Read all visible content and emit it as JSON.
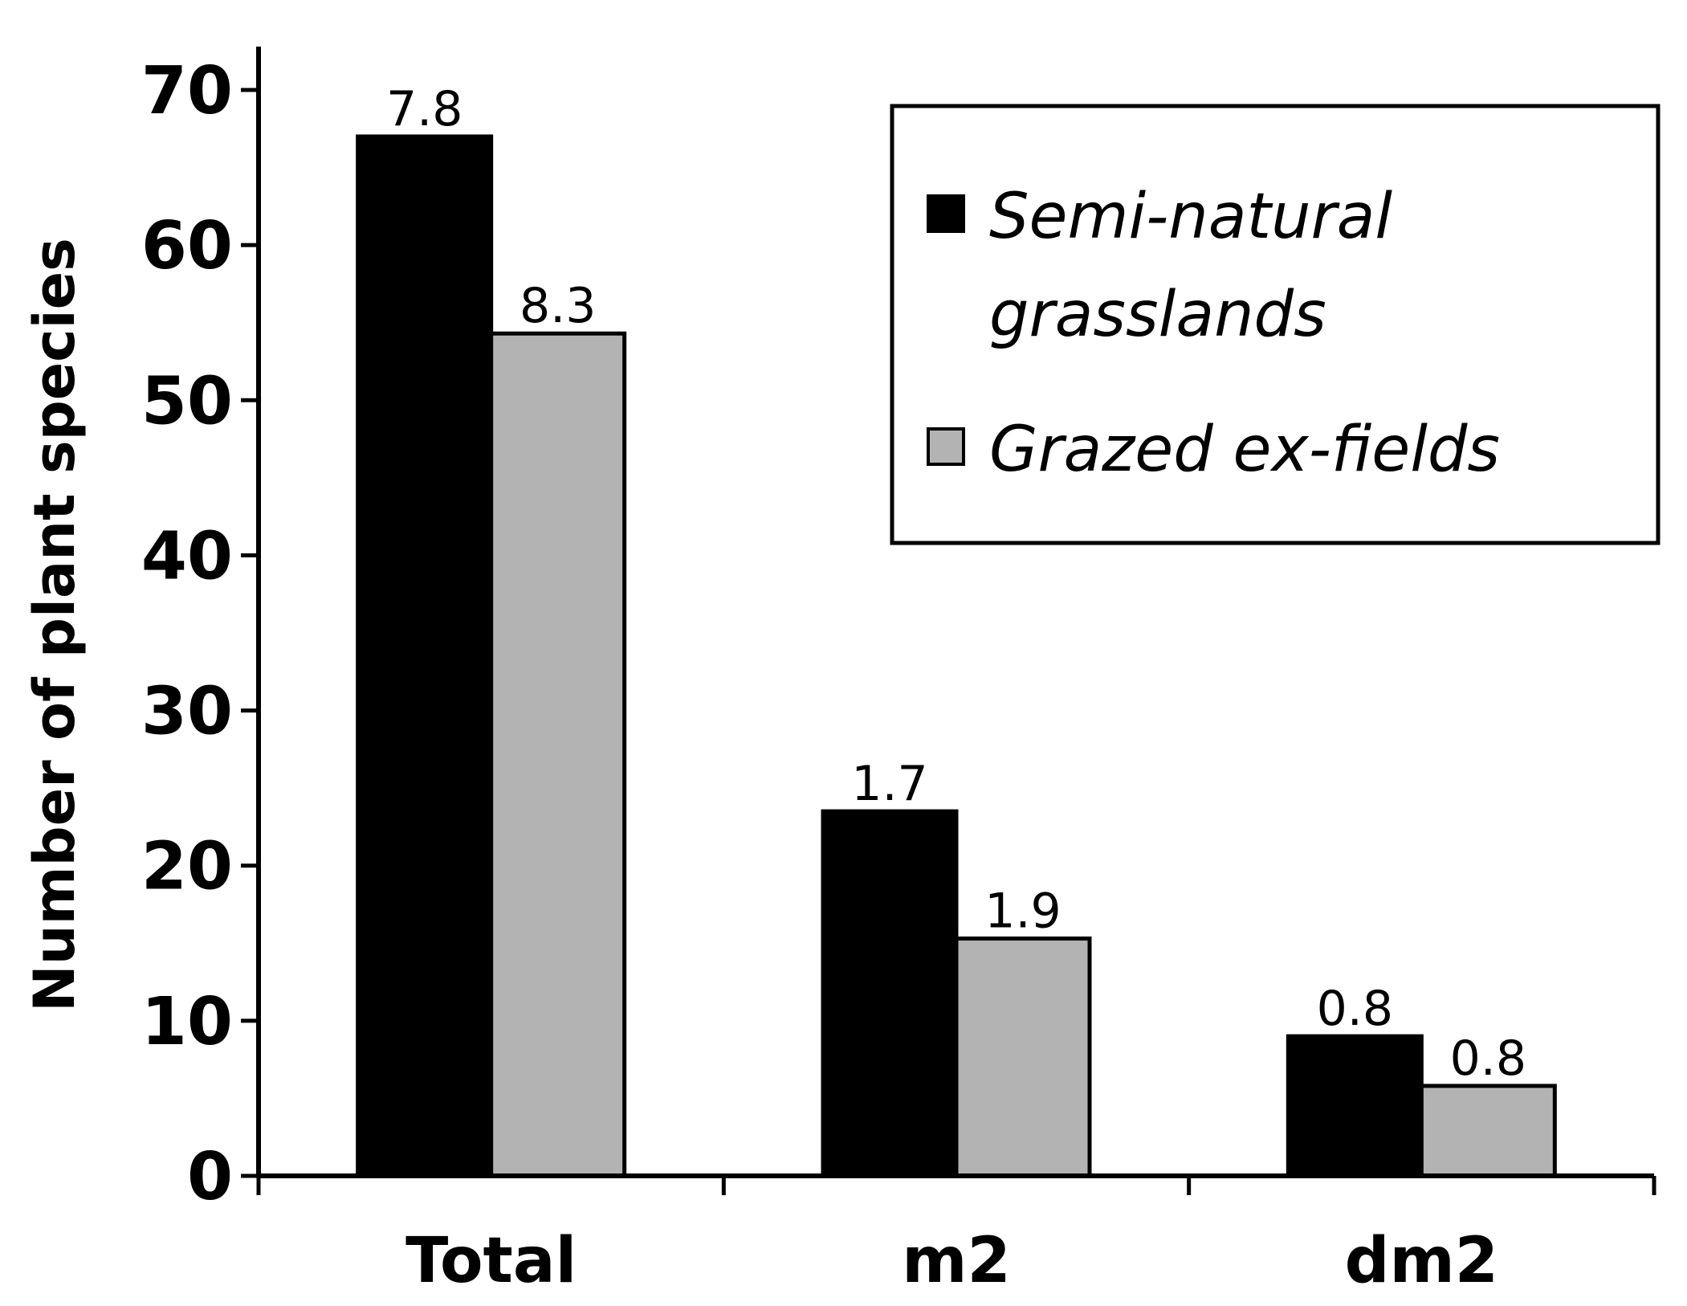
{
  "chart_data": {
    "type": "bar",
    "categories": [
      "Total",
      "m2",
      "dm2"
    ],
    "ylabel": "Number of plant species",
    "xlabel": "",
    "ylim": [
      0,
      70
    ],
    "yticks": [
      0,
      10,
      20,
      30,
      40,
      50,
      60,
      70
    ],
    "grid": false,
    "legend_position": "top-right",
    "series": [
      {
        "name": "Semi-natural grasslands",
        "legend_lines": [
          "Semi-natural",
          "grasslands"
        ],
        "color": "#000000",
        "values": [
          67,
          23.5,
          9
        ],
        "error_labels": [
          "7.8",
          "1.7",
          "0.8"
        ]
      },
      {
        "name": "Grazed ex-fields",
        "legend_lines": [
          "Grazed ex-fields"
        ],
        "color": "#b3b3b3",
        "values": [
          54.3,
          15.3,
          5.8
        ],
        "error_labels": [
          "8.3",
          "1.9",
          "0.8"
        ]
      }
    ]
  }
}
